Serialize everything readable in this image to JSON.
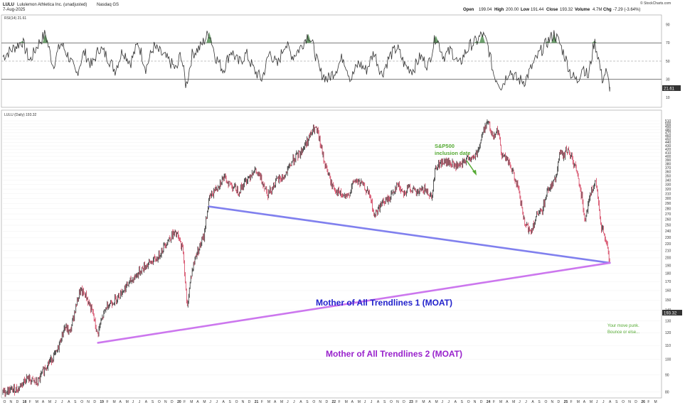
{
  "header": {
    "symbol": "LULU",
    "company": "Lululemon Athletica Inc. (unadjusted)",
    "exchange": "Nasdaq GS",
    "date": "7-Aug-2025",
    "source": "© StockCharts.com",
    "open_label": "Open",
    "open": "199.04",
    "high_label": "High",
    "high": "200.00",
    "low_label": "Low",
    "low": "191.44",
    "close_label": "Close",
    "close": "193.32",
    "volume_label": "Volume",
    "volume": "4.7M",
    "chg_label": "Chg",
    "chg": "-7.29 (-3.64%)"
  },
  "rsi_panel": {
    "label": "RSI(14) 21.61",
    "last_value": "21.61",
    "ticks": [
      "90",
      "70",
      "50",
      "30",
      "10"
    ],
    "overbought": 70,
    "oversold": 30,
    "mid": 50
  },
  "price_panel": {
    "label": "LULU (Daily) 193.32",
    "last_price": "193.32"
  },
  "annotations": {
    "sp500": [
      "S&P500",
      "inclusion date"
    ],
    "trend1": "Mother of All Trendlines 1 (MOAT)",
    "trend2": "Mother of All Trendlines 2 (MOAT)",
    "note": [
      "Your move punk.",
      "Bounce or else..."
    ]
  },
  "colors": {
    "trend1": "#8080ee",
    "trend2": "#cc77ee",
    "trend1_text": "#2222cc",
    "trend2_text": "#9922cc",
    "green_text": "#55aa33",
    "candle_up": "#111111",
    "candle_down": "#cc2244",
    "last_badge": "#333333"
  },
  "chart_data": {
    "type": "line",
    "title": "LULU Lululemon Athletica Inc. (unadjusted) Nasdaq GS",
    "ylabel": "",
    "y_scale": "log",
    "ylim": [
      78,
      520
    ],
    "y_ticks": [
      510,
      500,
      490,
      480,
      470,
      460,
      450,
      440,
      430,
      420,
      410,
      400,
      390,
      380,
      370,
      360,
      350,
      340,
      330,
      320,
      310,
      300,
      290,
      280,
      270,
      260,
      250,
      240,
      230,
      220,
      210,
      200,
      190,
      180,
      170,
      160,
      150,
      140,
      130,
      120,
      110,
      100,
      90,
      80
    ],
    "x_ticks": [
      "O",
      "N",
      "D",
      "18",
      "F",
      "M",
      "A",
      "M",
      "J",
      "J",
      "A",
      "S",
      "O",
      "N",
      "D",
      "19",
      "F",
      "M",
      "A",
      "M",
      "J",
      "J",
      "A",
      "S",
      "O",
      "N",
      "D",
      "20",
      "F",
      "M",
      "A",
      "M",
      "J",
      "J",
      "A",
      "S",
      "O",
      "N",
      "D",
      "21",
      "F",
      "M",
      "A",
      "M",
      "J",
      "J",
      "A",
      "S",
      "O",
      "N",
      "D",
      "22",
      "F",
      "M",
      "A",
      "M",
      "J",
      "J",
      "A",
      "S",
      "O",
      "N",
      "D",
      "23",
      "F",
      "M",
      "A",
      "M",
      "J",
      "J",
      "A",
      "S",
      "O",
      "N",
      "D",
      "24",
      "F",
      "M",
      "A",
      "M",
      "J",
      "J",
      "A",
      "S",
      "O",
      "N",
      "D",
      "25",
      "F",
      "M",
      "A",
      "M",
      "J",
      "J",
      "A",
      "S",
      "O",
      "N",
      "D",
      "26",
      "F",
      "M"
    ],
    "x_range": [
      2017.75,
      2026.25
    ],
    "series": [
      {
        "name": "LULU (Daily)",
        "points": [
          [
            2017.75,
            80
          ],
          [
            2017.95,
            82
          ],
          [
            2018.05,
            88
          ],
          [
            2018.2,
            85
          ],
          [
            2018.3,
            95
          ],
          [
            2018.45,
            105
          ],
          [
            2018.55,
            125
          ],
          [
            2018.62,
            120
          ],
          [
            2018.75,
            160
          ],
          [
            2018.82,
            155
          ],
          [
            2018.92,
            135
          ],
          [
            2018.97,
            118
          ],
          [
            2019.0,
            125
          ],
          [
            2019.1,
            145
          ],
          [
            2019.2,
            150
          ],
          [
            2019.3,
            160
          ],
          [
            2019.45,
            175
          ],
          [
            2019.6,
            190
          ],
          [
            2019.75,
            200
          ],
          [
            2019.85,
            220
          ],
          [
            2019.95,
            235
          ],
          [
            2020.0,
            235
          ],
          [
            2020.08,
            210
          ],
          [
            2020.13,
            140
          ],
          [
            2020.18,
            175
          ],
          [
            2020.25,
            205
          ],
          [
            2020.35,
            230
          ],
          [
            2020.42,
            300
          ],
          [
            2020.5,
            320
          ],
          [
            2020.6,
            345
          ],
          [
            2020.7,
            330
          ],
          [
            2020.8,
            315
          ],
          [
            2020.9,
            340
          ],
          [
            2021.0,
            365
          ],
          [
            2021.1,
            340
          ],
          [
            2021.18,
            310
          ],
          [
            2021.3,
            340
          ],
          [
            2021.4,
            350
          ],
          [
            2021.5,
            390
          ],
          [
            2021.6,
            410
          ],
          [
            2021.7,
            450
          ],
          [
            2021.78,
            485
          ],
          [
            2021.82,
            470
          ],
          [
            2021.9,
            390
          ],
          [
            2022.0,
            330
          ],
          [
            2022.1,
            310
          ],
          [
            2022.2,
            300
          ],
          [
            2022.3,
            340
          ],
          [
            2022.4,
            330
          ],
          [
            2022.5,
            305
          ],
          [
            2022.55,
            265
          ],
          [
            2022.65,
            290
          ],
          [
            2022.75,
            300
          ],
          [
            2022.85,
            330
          ],
          [
            2022.95,
            310
          ],
          [
            2023.0,
            325
          ],
          [
            2023.1,
            310
          ],
          [
            2023.2,
            320
          ],
          [
            2023.3,
            305
          ],
          [
            2023.35,
            375
          ],
          [
            2023.45,
            385
          ],
          [
            2023.55,
            380
          ],
          [
            2023.65,
            370
          ],
          [
            2023.72,
            385
          ],
          [
            2023.78,
            400
          ],
          [
            2023.82,
            390
          ],
          [
            2023.9,
            420
          ],
          [
            2023.97,
            480
          ],
          [
            2024.02,
            510
          ],
          [
            2024.08,
            460
          ],
          [
            2024.15,
            480
          ],
          [
            2024.2,
            410
          ],
          [
            2024.3,
            380
          ],
          [
            2024.4,
            330
          ],
          [
            2024.5,
            250
          ],
          [
            2024.58,
            240
          ],
          [
            2024.65,
            265
          ],
          [
            2024.72,
            275
          ],
          [
            2024.8,
            320
          ],
          [
            2024.9,
            340
          ],
          [
            2024.95,
            410
          ],
          [
            2025.0,
            400
          ],
          [
            2025.05,
            420
          ],
          [
            2025.12,
            390
          ],
          [
            2025.2,
            340
          ],
          [
            2025.28,
            260
          ],
          [
            2025.35,
            310
          ],
          [
            2025.42,
            335
          ],
          [
            2025.48,
            250
          ],
          [
            2025.52,
            240
          ],
          [
            2025.55,
            225
          ],
          [
            2025.6,
            193.32
          ]
        ]
      }
    ],
    "rsi": {
      "name": "RSI(14)",
      "ylim": [
        0,
        100
      ],
      "points": [
        [
          2017.75,
          55
        ],
        [
          2017.9,
          65
        ],
        [
          2018.0,
          72
        ],
        [
          2018.1,
          50
        ],
        [
          2018.2,
          68
        ],
        [
          2018.3,
          80
        ],
        [
          2018.4,
          45
        ],
        [
          2018.5,
          70
        ],
        [
          2018.6,
          55
        ],
        [
          2018.7,
          35
        ],
        [
          2018.8,
          60
        ],
        [
          2018.9,
          45
        ],
        [
          2019.0,
          65
        ],
        [
          2019.1,
          55
        ],
        [
          2019.2,
          40
        ],
        [
          2019.3,
          62
        ],
        [
          2019.4,
          48
        ],
        [
          2019.5,
          70
        ],
        [
          2019.6,
          42
        ],
        [
          2019.7,
          66
        ],
        [
          2019.8,
          58
        ],
        [
          2019.9,
          50
        ],
        [
          2020.0,
          40
        ],
        [
          2020.05,
          60
        ],
        [
          2020.12,
          22
        ],
        [
          2020.2,
          58
        ],
        [
          2020.3,
          65
        ],
        [
          2020.42,
          82
        ],
        [
          2020.5,
          55
        ],
        [
          2020.6,
          40
        ],
        [
          2020.7,
          62
        ],
        [
          2020.8,
          48
        ],
        [
          2020.9,
          58
        ],
        [
          2021.0,
          40
        ],
        [
          2021.1,
          30
        ],
        [
          2021.2,
          60
        ],
        [
          2021.3,
          45
        ],
        [
          2021.4,
          70
        ],
        [
          2021.5,
          55
        ],
        [
          2021.6,
          65
        ],
        [
          2021.7,
          80
        ],
        [
          2021.78,
          62
        ],
        [
          2021.85,
          38
        ],
        [
          2021.95,
          30
        ],
        [
          2022.05,
          40
        ],
        [
          2022.15,
          55
        ],
        [
          2022.25,
          30
        ],
        [
          2022.35,
          48
        ],
        [
          2022.45,
          40
        ],
        [
          2022.55,
          60
        ],
        [
          2022.65,
          35
        ],
        [
          2022.75,
          55
        ],
        [
          2022.85,
          65
        ],
        [
          2022.95,
          45
        ],
        [
          2023.05,
          40
        ],
        [
          2023.15,
          55
        ],
        [
          2023.25,
          45
        ],
        [
          2023.35,
          78
        ],
        [
          2023.45,
          55
        ],
        [
          2023.55,
          62
        ],
        [
          2023.65,
          45
        ],
        [
          2023.72,
          58
        ],
        [
          2023.8,
          68
        ],
        [
          2023.88,
          72
        ],
        [
          2023.95,
          80
        ],
        [
          2024.02,
          68
        ],
        [
          2024.1,
          35
        ],
        [
          2024.2,
          22
        ],
        [
          2024.3,
          40
        ],
        [
          2024.4,
          30
        ],
        [
          2024.5,
          28
        ],
        [
          2024.6,
          45
        ],
        [
          2024.7,
          60
        ],
        [
          2024.8,
          72
        ],
        [
          2024.88,
          80
        ],
        [
          2024.95,
          70
        ],
        [
          2025.02,
          55
        ],
        [
          2025.1,
          35
        ],
        [
          2025.18,
          28
        ],
        [
          2025.25,
          45
        ],
        [
          2025.32,
          32
        ],
        [
          2025.4,
          72
        ],
        [
          2025.45,
          55
        ],
        [
          2025.5,
          30
        ],
        [
          2025.55,
          38
        ],
        [
          2025.6,
          21.61
        ]
      ]
    },
    "trendlines": [
      {
        "name": "Mother of All Trendlines 1 (MOAT)",
        "points": [
          [
            2020.42,
            284
          ],
          [
            2025.6,
            193.32
          ]
        ]
      },
      {
        "name": "Mother of All Trendlines 2 (MOAT)",
        "points": [
          [
            2018.98,
            112
          ],
          [
            2025.6,
            193.32
          ]
        ]
      }
    ]
  }
}
